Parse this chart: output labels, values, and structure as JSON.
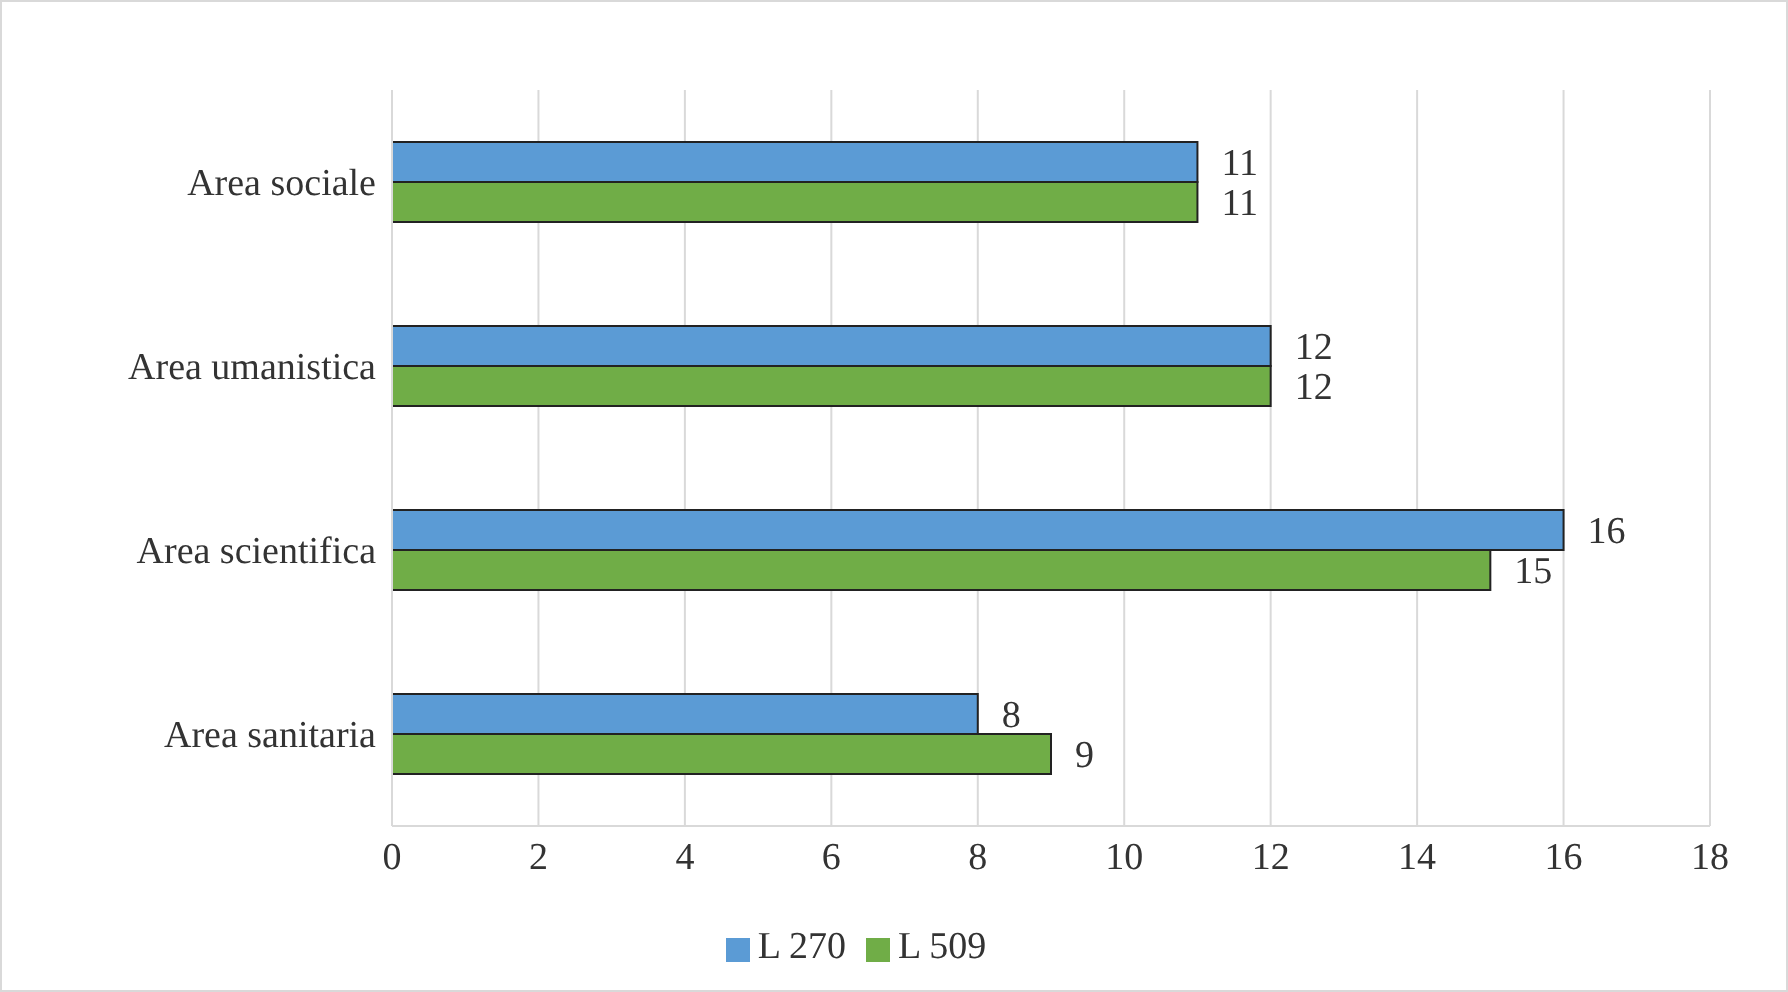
{
  "chart_data": {
    "type": "bar",
    "orientation": "horizontal",
    "categories": [
      "Area sociale",
      "Area umanistica",
      "Area scientifica",
      "Area sanitaria"
    ],
    "series": [
      {
        "name": "L 270",
        "color": "#5b9bd5",
        "values": [
          11,
          12,
          16,
          8
        ]
      },
      {
        "name": "L 509",
        "color": "#70ad47",
        "values": [
          11,
          12,
          15,
          9
        ]
      }
    ],
    "xlim": [
      0,
      18
    ],
    "xticks": [
      0,
      2,
      4,
      6,
      8,
      10,
      12,
      14,
      16,
      18
    ],
    "grid": "x",
    "legend": "bottom",
    "data_labels": true
  }
}
